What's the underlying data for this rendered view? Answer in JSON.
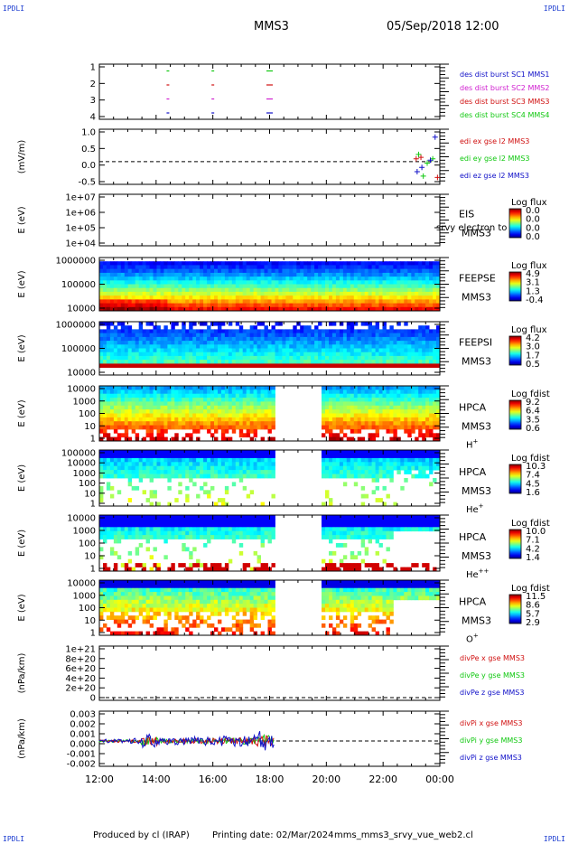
{
  "corners": {
    "tl": "IPDLI",
    "tr": "IPDLI",
    "bl": "IPDLI",
    "br": "IPDLI"
  },
  "header": {
    "mission": "MMS3",
    "datetime": "05/Sep/2018 12:00"
  },
  "footer": {
    "produced": "Produced by cl (IRAP)",
    "printed": "Printing date: 02/Mar/2024",
    "file": "mms_mms3_srvy_vue_web2.cl"
  },
  "time_axis": {
    "ticks": [
      "12:00",
      "14:00",
      "16:00",
      "18:00",
      "20:00",
      "22:00",
      "00:00"
    ]
  },
  "colors": {
    "blue": "#1010c8",
    "magenta": "#d020d0",
    "red": "#d01010",
    "green": "#10c810"
  },
  "chart_data": [
    {
      "id": "p1",
      "type": "scatter",
      "ylabel": "",
      "yticks": [
        "1",
        "2",
        "3",
        "4"
      ],
      "legend": [
        "des dist burst SC1 MMS1",
        "des dist burst SC2 MMS2",
        "des dist burst SC3 MMS3",
        "des dist burst SC4 MMS4"
      ],
      "series": [
        {
          "name": "des dist burst SC1 MMS1",
          "x": [
            "14:25",
            "16:00",
            "18:00"
          ],
          "y": [
            1,
            1,
            1
          ],
          "color": "#1010c8"
        },
        {
          "name": "des dist burst SC2 MMS2",
          "x": [
            "14:25",
            "16:00",
            "18:00"
          ],
          "y": [
            2,
            2,
            2
          ],
          "color": "#d020d0"
        },
        {
          "name": "des dist burst SC3 MMS3",
          "x": [
            "14:25",
            "16:00",
            "18:00"
          ],
          "y": [
            3,
            3,
            3
          ],
          "color": "#d01010"
        },
        {
          "name": "des dist burst SC4 MMS4",
          "x": [
            "14:25",
            "16:00",
            "18:00"
          ],
          "y": [
            4,
            4,
            4
          ],
          "color": "#10c810"
        }
      ]
    },
    {
      "id": "p2",
      "type": "scatter",
      "ylabel": "(mV/m)",
      "yticks": [
        "1.0",
        "0.5",
        "0.0",
        "-0.5"
      ],
      "ylim": [
        -0.6,
        1.0
      ],
      "legend": [
        "edi ex gse l2 MMS3",
        "edi ey gse l2 MMS3",
        "edi ez gse l2 MMS3"
      ],
      "series": [
        {
          "name": "edi ex gse l2 MMS3",
          "x": [
            "23:10",
            "23:20",
            "23:55"
          ],
          "y": [
            0.1,
            0.15,
            -0.55
          ],
          "color": "#d01010"
        },
        {
          "name": "edi ey gse l2 MMS3",
          "x": [
            "23:15",
            "23:25",
            "23:45",
            "00:00"
          ],
          "y": [
            0.25,
            -0.5,
            0.1,
            -0.05
          ],
          "color": "#10c810"
        },
        {
          "name": "edi ez gse l2 MMS3",
          "x": [
            "23:12",
            "23:22",
            "23:40",
            "23:50"
          ],
          "y": [
            -0.35,
            -0.2,
            0.05,
            0.85
          ],
          "color": "#1010c8"
        }
      ]
    },
    {
      "id": "p3",
      "type": "heatmap",
      "ylabel": "E (eV)",
      "yticks": [
        "1e+07",
        "1e+06",
        "1e+05",
        "1e+04"
      ],
      "instrument": "EIS",
      "sc": "MMS3",
      "overlay": "srvy electron to",
      "colorbar": {
        "title": "Log flux",
        "ticks": [
          "0.0",
          "0.0",
          "0.0",
          "0.0"
        ]
      }
    },
    {
      "id": "p4",
      "type": "heatmap",
      "ylabel": "E (eV)",
      "yticks": [
        "1000000",
        "100000",
        "10000"
      ],
      "instrument": "FEEPSE",
      "sc": "MMS3",
      "colorbar": {
        "title": "Log flux",
        "ticks": [
          "4.9",
          "3.1",
          "1.3",
          "-0.4"
        ]
      }
    },
    {
      "id": "p5",
      "type": "heatmap",
      "ylabel": "E (eV)",
      "yticks": [
        "1000000",
        "100000",
        "10000"
      ],
      "instrument": "FEEPSI",
      "sc": "MMS3",
      "colorbar": {
        "title": "Log flux",
        "ticks": [
          "4.2",
          "3.0",
          "1.7",
          "0.5"
        ]
      }
    },
    {
      "id": "p6",
      "type": "heatmap",
      "ylabel": "E (eV)",
      "yticks": [
        "10000",
        "1000",
        "100",
        "10",
        "1"
      ],
      "instrument": "HPCA",
      "sc": "MMS3",
      "species": "H",
      "charge": "+",
      "colorbar": {
        "title": "Log fdist",
        "ticks": [
          "9.2",
          "6.4",
          "3.5",
          "0.6"
        ]
      }
    },
    {
      "id": "p7",
      "type": "heatmap",
      "ylabel": "E (eV)",
      "yticks": [
        "100000",
        "10000",
        "1000",
        "100",
        "10",
        "1"
      ],
      "instrument": "HPCA",
      "sc": "MMS3",
      "species": "He",
      "charge": "+",
      "colorbar": {
        "title": "Log fdist",
        "ticks": [
          "10.3",
          "7.4",
          "4.5",
          "1.6"
        ]
      }
    },
    {
      "id": "p8",
      "type": "heatmap",
      "ylabel": "E (eV)",
      "yticks": [
        "10000",
        "1000",
        "100",
        "10",
        "1"
      ],
      "instrument": "HPCA",
      "sc": "MMS3",
      "species": "He",
      "charge": "++",
      "colorbar": {
        "title": "Log fdist",
        "ticks": [
          "10.0",
          "7.1",
          "4.2",
          "1.4"
        ]
      }
    },
    {
      "id": "p9",
      "type": "heatmap",
      "ylabel": "E (eV)",
      "yticks": [
        "10000",
        "1000",
        "100",
        "10",
        "1"
      ],
      "instrument": "HPCA",
      "sc": "MMS3",
      "species": "O",
      "charge": "+",
      "colorbar": {
        "title": "Log fdist",
        "ticks": [
          "11.5",
          "8.6",
          "5.7",
          "2.9"
        ]
      }
    },
    {
      "id": "p10",
      "type": "line",
      "ylabel": "(nPa/km)",
      "yticks": [
        "1e+21",
        "8e+20",
        "6e+20",
        "4e+20",
        "2e+20",
        "0"
      ],
      "ylim": [
        0,
        1e+21
      ],
      "legend": [
        "divPe x gse MMS3",
        "divPe y gse MMS3",
        "divPe z gse MMS3"
      ]
    },
    {
      "id": "p11",
      "type": "line",
      "ylabel": "(nPa/km)",
      "yticks": [
        "0.003",
        "0.002",
        "0.001",
        "0.000",
        "-0.001",
        "-0.002"
      ],
      "ylim": [
        -0.0025,
        0.003
      ],
      "legend": [
        "divPi x gse MMS3",
        "divPi y gse MMS3",
        "divPi z gse MMS3"
      ]
    }
  ]
}
